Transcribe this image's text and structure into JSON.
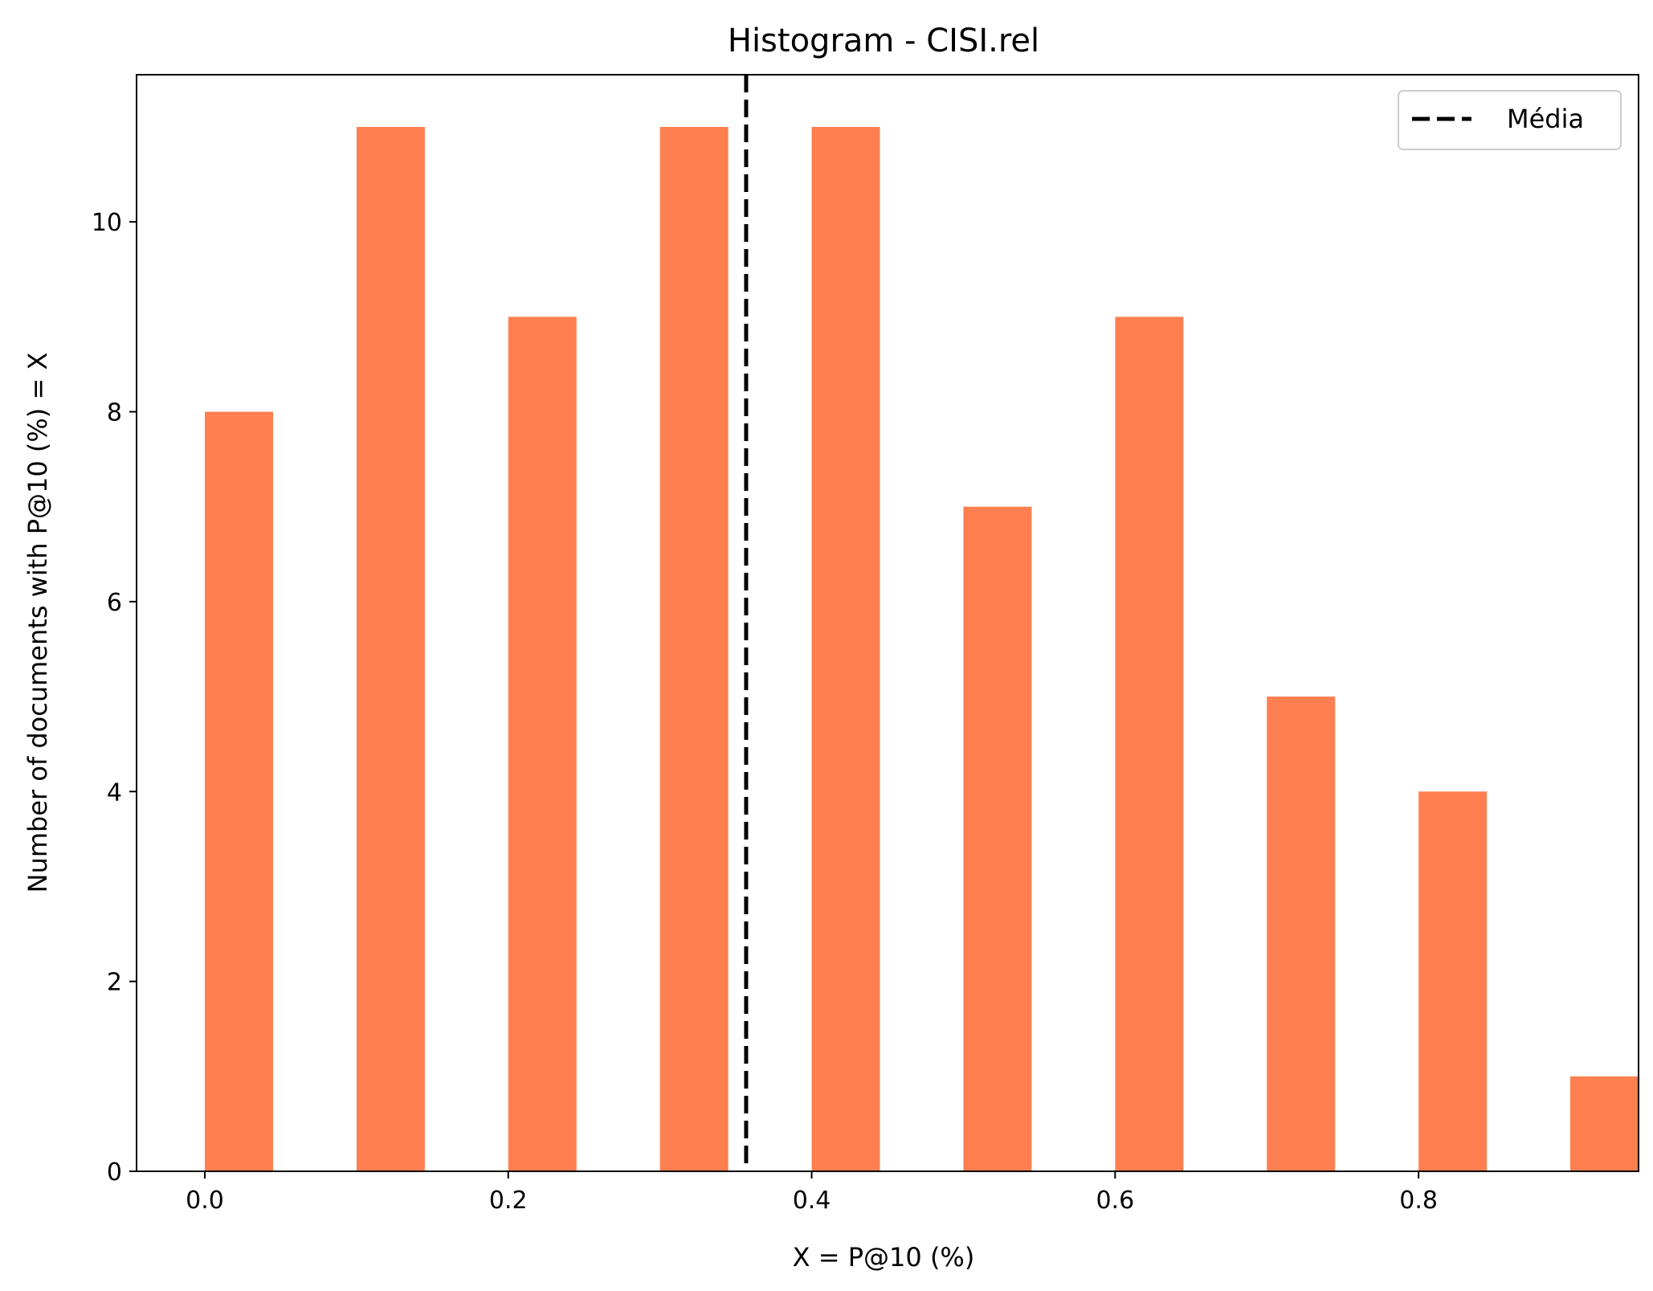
{
  "chart_data": {
    "type": "bar",
    "title": "Histogram - CISI.rel",
    "xlabel": "X = P@10 (%)",
    "ylabel": "Number of documents with P@10 (%) = X",
    "x": [
      0.0,
      0.1,
      0.2,
      0.3,
      0.4,
      0.5,
      0.6,
      0.7,
      0.8,
      0.9
    ],
    "values": [
      8,
      11,
      9,
      11,
      11,
      7,
      9,
      5,
      4,
      1
    ],
    "bar_width": 0.045,
    "bar_color": "#ff7f50",
    "mean": 0.3568,
    "mean_line_color": "#000000",
    "xlim": [
      -0.045,
      0.945
    ],
    "ylim": [
      0,
      11.55
    ],
    "xticks": [
      0.0,
      0.2,
      0.4,
      0.6,
      0.8
    ],
    "xtick_labels": [
      "0.0",
      "0.2",
      "0.4",
      "0.6",
      "0.8"
    ],
    "yticks": [
      0,
      2,
      4,
      6,
      8,
      10
    ],
    "ytick_labels": [
      "0",
      "2",
      "4",
      "6",
      "8",
      "10"
    ],
    "grid": false,
    "legend": {
      "position": "top-right",
      "entries": [
        "Média"
      ]
    }
  }
}
